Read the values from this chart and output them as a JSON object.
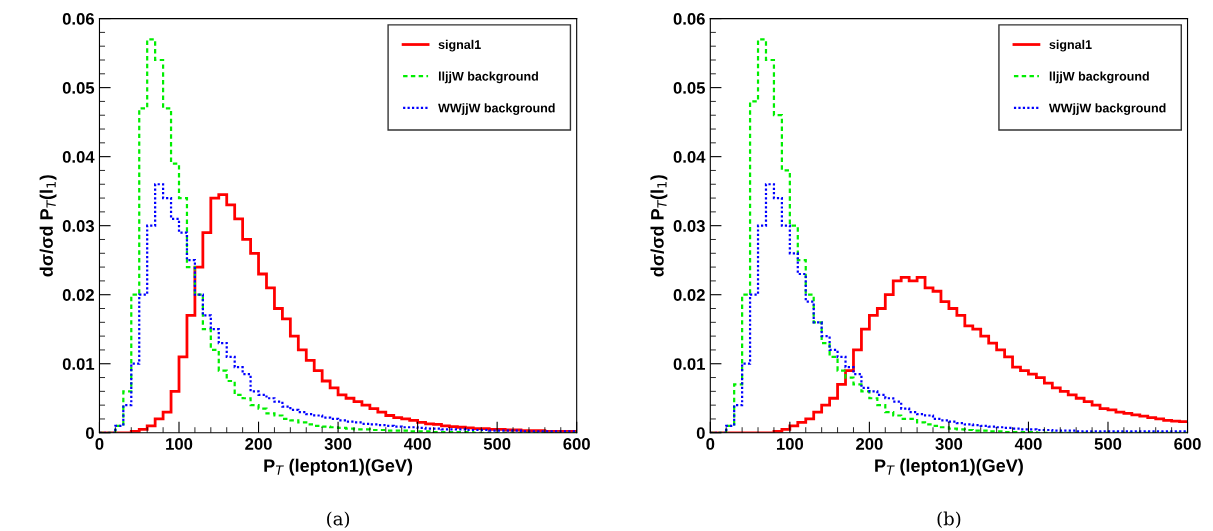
{
  "chart_data": [
    {
      "type": "histogram",
      "xlabel": "P$_{T}$ (lepton1)(GeV)",
      "ylabel": "dσ/σd P$_{T}$(l$_{1}$)",
      "annotations": [
        "(a)"
      ],
      "legend": "top right",
      "grid": false,
      "bins": [
        0,
        10,
        20,
        30,
        40,
        50,
        60,
        70,
        80,
        90,
        100,
        110,
        120,
        130,
        140,
        150,
        160,
        170,
        180,
        190,
        200,
        210,
        220,
        230,
        240,
        250,
        260,
        270,
        280,
        290,
        300,
        310,
        320,
        330,
        340,
        350,
        360,
        370,
        380,
        390,
        400,
        410,
        420,
        430,
        440,
        450,
        460,
        470,
        480,
        490,
        500,
        510,
        520,
        530,
        540,
        550,
        560,
        570,
        580,
        590,
        600
      ],
      "xlim": [
        0,
        600
      ],
      "xticks": [
        0,
        100,
        200,
        300,
        400,
        500,
        600
      ],
      "ylim": [
        0,
        0.06
      ],
      "yticks": [
        0,
        0.01,
        0.02,
        0.03,
        0.04,
        0.05,
        0.06
      ],
      "series": [
        {
          "name": "signal1",
          "color": "#ff0000",
          "line_style": "solid",
          "values": [
            0,
            0,
            0,
            0,
            0.0002,
            0.0005,
            0.001,
            0.002,
            0.003,
            0.006,
            0.011,
            0.017,
            0.024,
            0.029,
            0.034,
            0.0345,
            0.033,
            0.031,
            0.028,
            0.026,
            0.023,
            0.021,
            0.018,
            0.0165,
            0.014,
            0.012,
            0.0105,
            0.009,
            0.0075,
            0.0065,
            0.0055,
            0.005,
            0.0045,
            0.004,
            0.0035,
            0.003,
            0.0025,
            0.0022,
            0.002,
            0.0018,
            0.0015,
            0.0013,
            0.0012,
            0.001,
            0.0009,
            0.0008,
            0.0007,
            0.0006,
            0.0006,
            0.0005,
            0.0005,
            0.0004,
            0.0004,
            0.0003,
            0.0003,
            0.0003,
            0.0002,
            0.0002,
            0.0002,
            0.0002
          ]
        },
        {
          "name": "lljjW background",
          "color": "#00ee00",
          "line_style": "dashed",
          "values": [
            0,
            0,
            0.001,
            0.006,
            0.02,
            0.047,
            0.057,
            0.054,
            0.047,
            0.039,
            0.034,
            0.024,
            0.02,
            0.015,
            0.012,
            0.009,
            0.0075,
            0.0055,
            0.005,
            0.004,
            0.0035,
            0.0028,
            0.0025,
            0.002,
            0.0018,
            0.0015,
            0.0012,
            0.001,
            0.0009,
            0.0008,
            0.0007,
            0.0006,
            0.0005,
            0.0005,
            0.0004,
            0.0004,
            0.0003,
            0.0003,
            0.0003,
            0.0002,
            0.0002,
            0.0002,
            0.0001,
            0.0001,
            0.0001,
            0.0001,
            0.0001,
            0,
            0,
            0,
            0,
            0,
            0,
            0,
            0,
            0,
            0,
            0,
            0,
            0
          ]
        },
        {
          "name": "WWjjW background",
          "color": "#0000ff",
          "line_style": "dotted",
          "values": [
            0,
            0,
            0.001,
            0.004,
            0.01,
            0.02,
            0.03,
            0.036,
            0.034,
            0.031,
            0.029,
            0.025,
            0.02,
            0.017,
            0.015,
            0.013,
            0.011,
            0.0095,
            0.0085,
            0.006,
            0.0055,
            0.005,
            0.0045,
            0.0038,
            0.0033,
            0.003,
            0.0027,
            0.0025,
            0.0022,
            0.002,
            0.0018,
            0.0016,
            0.0015,
            0.0013,
            0.0012,
            0.0011,
            0.001,
            0.0009,
            0.0008,
            0.0008,
            0.0007,
            0.0006,
            0.0006,
            0.0005,
            0.0005,
            0.0005,
            0.0004,
            0.0004,
            0.0004,
            0.0003,
            0.0003,
            0.0003,
            0.0003,
            0.0002,
            0.0002,
            0.0002,
            0.0002,
            0.0002,
            0.0002,
            0.0002
          ]
        }
      ]
    },
    {
      "type": "histogram",
      "xlabel": "P$_{T}$ (lepton1)(GeV)",
      "ylabel": "dσ/σd P$_{T}$(l$_{1}$)",
      "annotations": [
        "(b)"
      ],
      "legend": "top right",
      "grid": false,
      "bins": [
        0,
        10,
        20,
        30,
        40,
        50,
        60,
        70,
        80,
        90,
        100,
        110,
        120,
        130,
        140,
        150,
        160,
        170,
        180,
        190,
        200,
        210,
        220,
        230,
        240,
        250,
        260,
        270,
        280,
        290,
        300,
        310,
        320,
        330,
        340,
        350,
        360,
        370,
        380,
        390,
        400,
        410,
        420,
        430,
        440,
        450,
        460,
        470,
        480,
        490,
        500,
        510,
        520,
        530,
        540,
        550,
        560,
        570,
        580,
        590,
        600
      ],
      "xlim": [
        0,
        600
      ],
      "xticks": [
        0,
        100,
        200,
        300,
        400,
        500,
        600
      ],
      "ylim": [
        0,
        0.06
      ],
      "yticks": [
        0,
        0.01,
        0.02,
        0.03,
        0.04,
        0.05,
        0.06
      ],
      "series": [
        {
          "name": "signal1",
          "color": "#ff0000",
          "line_style": "solid",
          "values": [
            0,
            0,
            0,
            0,
            0,
            0,
            0,
            0,
            0.0002,
            0.0005,
            0.001,
            0.0015,
            0.002,
            0.003,
            0.004,
            0.005,
            0.007,
            0.009,
            0.012,
            0.015,
            0.017,
            0.018,
            0.02,
            0.022,
            0.0225,
            0.022,
            0.0225,
            0.021,
            0.0205,
            0.019,
            0.018,
            0.017,
            0.0155,
            0.015,
            0.014,
            0.013,
            0.012,
            0.011,
            0.0095,
            0.009,
            0.0085,
            0.008,
            0.0072,
            0.0065,
            0.006,
            0.0055,
            0.005,
            0.0045,
            0.004,
            0.0035,
            0.0033,
            0.003,
            0.0028,
            0.0026,
            0.0024,
            0.0022,
            0.002,
            0.0018,
            0.0017,
            0.0016
          ]
        },
        {
          "name": "lljjW background",
          "color": "#00ee00",
          "line_style": "dashed",
          "values": [
            0,
            0,
            0.001,
            0.007,
            0.02,
            0.048,
            0.057,
            0.054,
            0.046,
            0.038,
            0.03,
            0.025,
            0.02,
            0.016,
            0.013,
            0.011,
            0.009,
            0.008,
            0.007,
            0.006,
            0.005,
            0.004,
            0.003,
            0.0025,
            0.002,
            0.002,
            0.0015,
            0.0012,
            0.001,
            0.0008,
            0.0006,
            0.0005,
            0.0004,
            0.0003,
            0.0003,
            0.0002,
            0.0002,
            0.0001,
            0.0001,
            0.0001,
            0.0001,
            0,
            0,
            0,
            0,
            0,
            0,
            0,
            0,
            0,
            0,
            0,
            0,
            0,
            0,
            0,
            0,
            0,
            0,
            0
          ]
        },
        {
          "name": "WWjjW background",
          "color": "#0000ff",
          "line_style": "dotted",
          "values": [
            0,
            0,
            0.001,
            0.004,
            0.01,
            0.02,
            0.03,
            0.036,
            0.034,
            0.03,
            0.026,
            0.023,
            0.019,
            0.016,
            0.014,
            0.012,
            0.011,
            0.0095,
            0.0085,
            0.0065,
            0.006,
            0.0055,
            0.005,
            0.0045,
            0.0035,
            0.003,
            0.0027,
            0.0025,
            0.002,
            0.0018,
            0.0016,
            0.0014,
            0.0012,
            0.0011,
            0.001,
            0.0009,
            0.0008,
            0.0007,
            0.0006,
            0.0005,
            0.0005,
            0.0004,
            0.0004,
            0.0003,
            0.0003,
            0.0003,
            0.0002,
            0.0002,
            0.0002,
            0.0002,
            0.0002,
            0.0002,
            0.0002,
            0.0002,
            0.0002,
            0.0002,
            0.0002,
            0.0002,
            0.0002,
            0.0002
          ]
        }
      ]
    }
  ]
}
